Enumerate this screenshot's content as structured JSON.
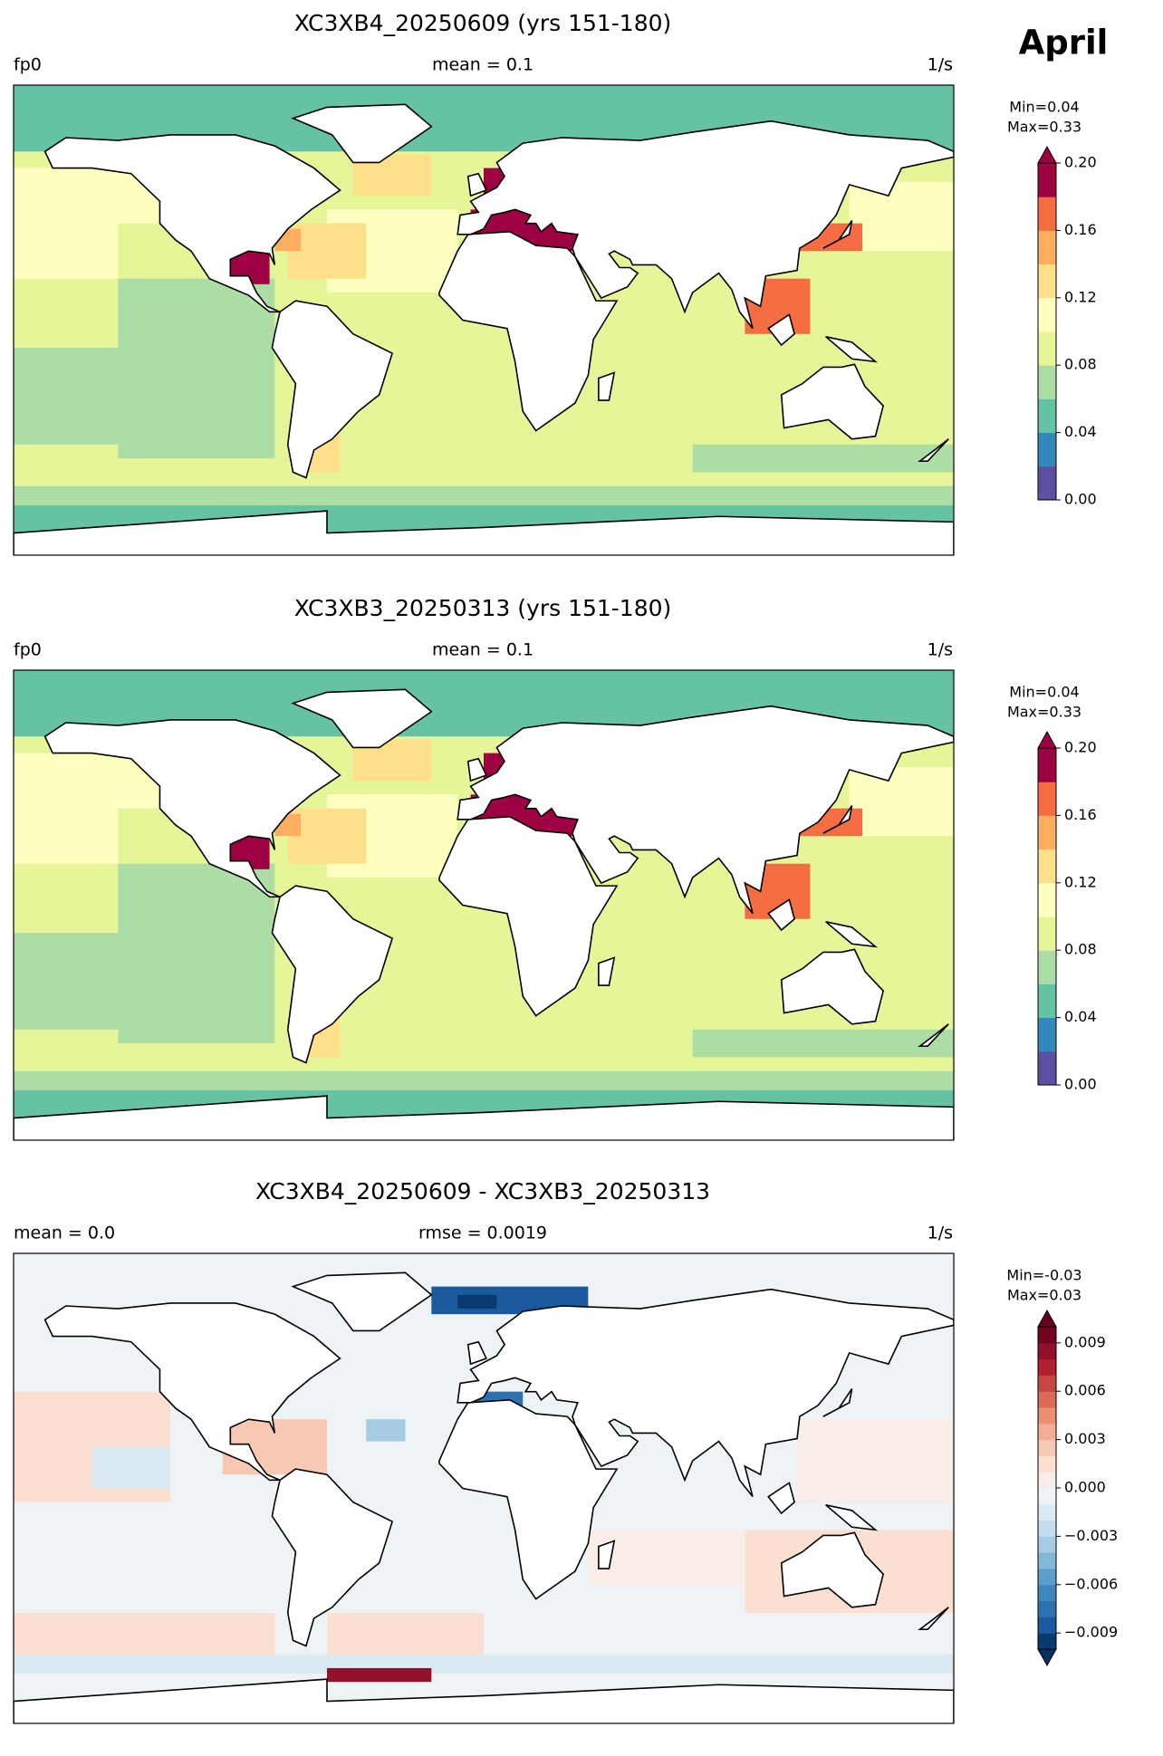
{
  "month": "April",
  "panels": [
    {
      "title": "XC3XB4_20250609 (yrs 151-180)",
      "left": "fp0",
      "center": "mean = 0.1",
      "right": "1/s",
      "stats": [
        "Min=0.04",
        "Max=0.33"
      ],
      "colorbar": {
        "lim": [
          0,
          0.2
        ],
        "colors": [
          "#5e4fa2",
          "#3288bd",
          "#66c2a5",
          "#abdda4",
          "#e6f598",
          "#ffffbf",
          "#fee08b",
          "#fdae61",
          "#f46d43",
          "#9e0142"
        ],
        "over": "#9e0142",
        "ticks": [
          {
            "value": 0,
            "label": "0.00"
          },
          0.04,
          0.08,
          0.12,
          0.16,
          {
            "value": 0.2,
            "label": "0.20"
          }
        ]
      }
    },
    {
      "title": "XC3XB3_20250313 (yrs 151-180)",
      "left": "fp0",
      "center": "mean = 0.1",
      "right": "1/s",
      "stats": [
        "Min=0.04",
        "Max=0.33"
      ],
      "colorbar": {
        "lim": [
          0,
          0.2
        ],
        "colors": [
          "#5e4fa2",
          "#3288bd",
          "#66c2a5",
          "#abdda4",
          "#e6f598",
          "#ffffbf",
          "#fee08b",
          "#fdae61",
          "#f46d43",
          "#9e0142"
        ],
        "over": "#9e0142",
        "ticks": [
          {
            "value": 0,
            "label": "0.00"
          },
          0.04,
          0.08,
          0.12,
          0.16,
          {
            "value": 0.2,
            "label": "0.20"
          }
        ]
      }
    },
    {
      "title": "XC3XB4_20250609 - XC3XB3_20250313",
      "left": "mean = 0.0",
      "center": "rmse = 0.0019",
      "right": "1/s",
      "stats": [
        "Min=-0.03",
        "Max=0.03"
      ],
      "colorbar": {
        "lim": [
          -0.01,
          0.01
        ],
        "colors": [
          "#0a3b70",
          "#1b5a9c",
          "#2c71b0",
          "#3f86bd",
          "#5c9ec9",
          "#82b8d8",
          "#a6cce3",
          "#c4dcec",
          "#dbe9f2",
          "#eef3f6",
          "#f8ede7",
          "#fbdfd0",
          "#f8c9b2",
          "#f4ad92",
          "#ea8e74",
          "#da6a57",
          "#c74642",
          "#b2202f",
          "#92102a",
          "#6f0320"
        ],
        "under": "#053061",
        "over": "#67001f",
        "ticks": [
          {
            "value": -0.009,
            "label": "−0.009"
          },
          {
            "value": -0.006,
            "label": "−0.006"
          },
          {
            "value": -0.003,
            "label": "−0.003"
          },
          {
            "value": 0,
            "label": "0.000"
          },
          0.003,
          0.006,
          0.009
        ]
      }
    }
  ]
}
